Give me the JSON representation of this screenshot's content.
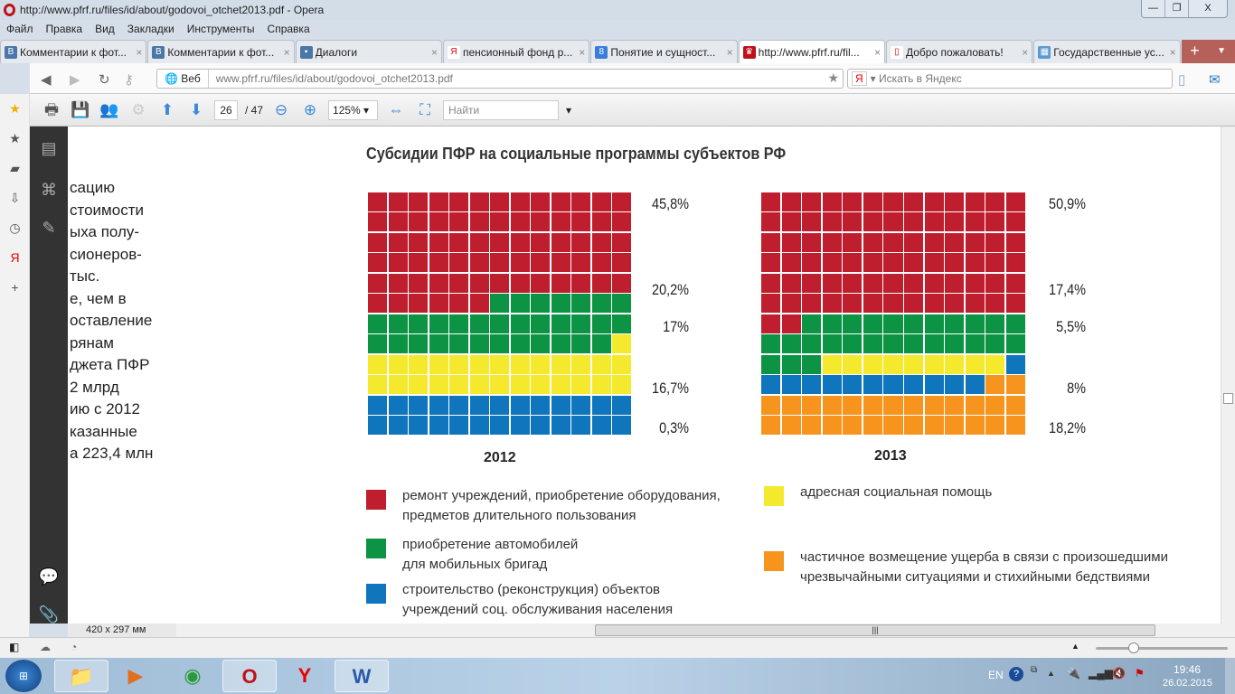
{
  "window": {
    "title": "http://www.pfrf.ru/files/id/about/godovoi_otchet2013.pdf - Opera",
    "controls": [
      "—",
      "❐",
      "X"
    ]
  },
  "menu": [
    "Файл",
    "Правка",
    "Вид",
    "Закладки",
    "Инструменты",
    "Справка"
  ],
  "tabs": [
    {
      "label": "Комментарии к фот...",
      "icon": "vk-icon",
      "color": "#4a76a8",
      "glyph": "B"
    },
    {
      "label": "Комментарии к фот...",
      "icon": "vk-icon",
      "color": "#4a76a8",
      "glyph": "B"
    },
    {
      "label": "Диалоги",
      "icon": "chat-icon",
      "color": "#4a76a8",
      "glyph": "▪"
    },
    {
      "label": "пенсионный фонд р...",
      "icon": "yandex-icon",
      "color": "#ffffff",
      "glyph": "Я"
    },
    {
      "label": "Понятие и сущност...",
      "icon": "google-icon",
      "color": "#3b7ddd",
      "glyph": "8"
    },
    {
      "label": "http://www.pfrf.ru/fil...",
      "icon": "pfrf-icon",
      "color": "#c0101a",
      "glyph": "♛"
    },
    {
      "label": "Добро пожаловать!",
      "icon": "page-icon",
      "color": "#ffffff",
      "glyph": "▯"
    },
    {
      "label": "Государственные ус...",
      "icon": "building-icon",
      "color": "#5a9ad0",
      "glyph": "▦"
    }
  ],
  "address": {
    "web_label": "Веб",
    "url": "www.pfrf.ru/files/id/about/godovoi_otchet2013.pdf",
    "search_placeholder": "Искать в Яндекс",
    "search_brand": "Я"
  },
  "pdf_toolbar": {
    "page": "26",
    "total": "/ 47",
    "zoom": "125%",
    "find_placeholder": "Найти"
  },
  "doc": {
    "title": "Субсидии ПФР на социальные программы субъектов РФ",
    "left_text": [
      "сацию",
      "стоимости",
      "ыха полу-",
      "сионеров-",
      "тыс.",
      "е, чем в",
      "оставление",
      "рянам",
      "джета ПФР",
      "2 млрд",
      "ию с 2012",
      "казанные",
      "а 223,4 млн"
    ]
  },
  "chart_data": [
    {
      "type": "waffle",
      "title": "2012",
      "categories": [
        "ремонт учреждений",
        "приобретение автомобилей",
        "адресная социальная помощь",
        "строительство (реконструкция)",
        "частичное возмещение ущерба"
      ],
      "values": [
        45.8,
        20.2,
        17,
        16.7,
        0.3
      ],
      "labels": [
        "45,8%",
        "20,2%",
        "17%",
        "16,7%",
        "0,3%"
      ]
    },
    {
      "type": "waffle",
      "title": "2013",
      "categories": [
        "ремонт учреждений",
        "приобретение автомобилей",
        "адресная социальная помощь",
        "строительство (реконструкция)",
        "частичное возмещение ущерба"
      ],
      "values": [
        50.9,
        17.4,
        5.5,
        8,
        18.2
      ],
      "labels": [
        "50,9%",
        "17,4%",
        "5,5%",
        "8%",
        "18,2%"
      ]
    }
  ],
  "colors": [
    "#be1e2d",
    "#0c9444",
    "#f5e92e",
    "#0f75bc",
    "#f7941d"
  ],
  "legend": [
    {
      "l1": "ремонт учреждений, приобретение оборудования,",
      "l2": "предметов длительного пользования"
    },
    {
      "l1": "приобретение автомобилей",
      "l2": "для мобильных бригад"
    },
    {
      "l1": "строительство (реконструкция) объектов",
      "l2": "учреждений соц. обслуживания населения"
    },
    {
      "l1": "адресная социальная помощь",
      "l2": ""
    },
    {
      "l1": "частичное возмещение ущерба в связи с произошедшими",
      "l2": "чрезвычайными ситуациями и стихийными бедствиями"
    }
  ],
  "status": {
    "page_size": "420 x 297 мм"
  },
  "tray": {
    "lang": "EN",
    "time": "19:46",
    "date": "26.02.2015"
  }
}
